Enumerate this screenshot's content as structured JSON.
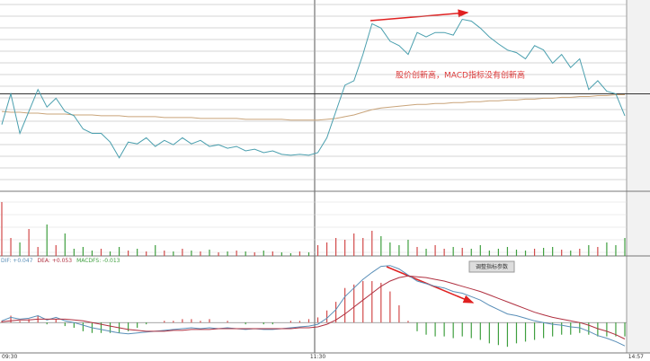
{
  "chart_data": [
    {
      "type": "line",
      "annotation": "股价创新高，MACD指标没有创新高",
      "categories": [
        "09:30",
        null,
        null,
        null,
        null,
        null,
        null,
        null,
        null,
        null,
        null,
        null,
        null,
        null,
        null,
        null,
        null,
        null,
        null,
        null,
        null,
        null,
        null,
        null,
        null,
        null,
        null,
        null,
        null,
        null,
        null,
        null,
        null,
        null,
        null,
        "11:30",
        null,
        null,
        null,
        null,
        null,
        null,
        null,
        null,
        null,
        null,
        null,
        null,
        null,
        null,
        null,
        null,
        null,
        null,
        null,
        null,
        null,
        null,
        null,
        null,
        null,
        null,
        null,
        null,
        null,
        null,
        null,
        null,
        null,
        "14:57"
      ],
      "ylim": [
        0,
        213
      ],
      "reference": 108,
      "series": [
        {
          "color": "#4a9fae",
          "values": [
            73,
            108,
            63,
            88,
            113,
            93,
            103,
            88,
            83,
            68,
            63,
            63,
            53,
            35,
            53,
            51,
            58,
            48,
            55,
            50,
            58,
            51,
            55,
            48,
            50,
            46,
            48,
            43,
            45,
            41,
            43,
            39,
            38,
            39,
            38,
            41,
            58,
            88,
            118,
            123,
            153,
            188,
            183,
            168,
            163,
            153,
            178,
            173,
            178,
            178,
            175,
            193,
            191,
            183,
            173,
            165,
            158,
            155,
            148,
            163,
            158,
            143,
            153,
            138,
            148,
            113,
            123,
            111,
            108,
            83
          ]
        },
        {
          "color": "#c9a47a",
          "values": [
            88,
            87,
            87,
            86,
            86,
            85,
            85,
            85,
            84,
            84,
            84,
            83,
            83,
            83,
            82,
            82,
            82,
            82,
            81,
            81,
            81,
            81,
            80,
            80,
            80,
            80,
            80,
            79,
            79,
            79,
            79,
            79,
            78,
            78,
            78,
            78,
            79,
            80,
            82,
            84,
            87,
            90,
            92,
            93,
            94,
            95,
            96,
            96,
            97,
            97,
            98,
            98,
            99,
            99,
            100,
            100,
            101,
            101,
            102,
            102,
            103,
            103,
            104,
            104,
            105,
            105,
            106,
            106,
            107,
            107
          ]
        }
      ]
    },
    {
      "type": "bar",
      "ylim": [
        0,
        72
      ],
      "up_color": "#d24a4a",
      "down_color": "#3f9f3f",
      "values": [
        60,
        20,
        15,
        30,
        10,
        35,
        12,
        25,
        8,
        10,
        6,
        8,
        5,
        10,
        6,
        8,
        5,
        12,
        6,
        5,
        8,
        6,
        5,
        7,
        4,
        5,
        6,
        5,
        4,
        6,
        5,
        4,
        3,
        5,
        4,
        12,
        15,
        20,
        18,
        25,
        20,
        28,
        22,
        15,
        12,
        18,
        10,
        8,
        12,
        8,
        10,
        9,
        8,
        12,
        6,
        8,
        10,
        7,
        6,
        8,
        9,
        10,
        7,
        6,
        8,
        12,
        10,
        15,
        12,
        20
      ]
    },
    {
      "type": "macd",
      "button": "调整指标参数",
      "ylim": [
        -33,
        75
      ],
      "series": [
        {
          "name": "DIF: +0.047",
          "color": "#5a8fb8",
          "values": [
            2,
            6,
            4,
            5,
            8,
            3,
            6,
            2,
            0,
            -3,
            -6,
            -8,
            -10,
            -12,
            -13,
            -12,
            -11,
            -10,
            -9,
            -8,
            -7,
            -6,
            -7,
            -6,
            -7,
            -6,
            -7,
            -8,
            -7,
            -8,
            -8,
            -7,
            -6,
            -5,
            -4,
            -2,
            5,
            15,
            30,
            40,
            50,
            58,
            65,
            66,
            62,
            55,
            48,
            45,
            42,
            40,
            36,
            34,
            30,
            26,
            20,
            15,
            10,
            8,
            5,
            2,
            0,
            -2,
            -3,
            -5,
            -6,
            -10,
            -15,
            -18,
            -22,
            -27
          ]
        },
        {
          "name": "DEA: +0.053",
          "color": "#b03040",
          "values": [
            1,
            2,
            3,
            3,
            4,
            4,
            4,
            4,
            3,
            2,
            0,
            -2,
            -4,
            -6,
            -8,
            -9,
            -10,
            -10,
            -10,
            -9,
            -9,
            -8,
            -8,
            -8,
            -7,
            -7,
            -7,
            -7,
            -7,
            -7,
            -7,
            -7,
            -7,
            -6,
            -6,
            -5,
            -2,
            3,
            10,
            18,
            26,
            34,
            42,
            48,
            52,
            54,
            53,
            52,
            50,
            48,
            45,
            42,
            39,
            36,
            32,
            28,
            24,
            20,
            16,
            12,
            9,
            6,
            4,
            2,
            0,
            -3,
            -7,
            -10,
            -14,
            -19
          ]
        },
        {
          "name": "MACDFS: -0.013",
          "color": "#3f9f3f",
          "up_color": "#d24a4a",
          "values": [
            2,
            8,
            2,
            4,
            8,
            -2,
            4,
            -4,
            -6,
            -10,
            -12,
            -12,
            -12,
            -12,
            -10,
            -6,
            -2,
            0,
            2,
            2,
            4,
            4,
            2,
            4,
            0,
            2,
            0,
            -2,
            0,
            -2,
            -2,
            0,
            2,
            2,
            4,
            6,
            14,
            24,
            40,
            44,
            48,
            48,
            46,
            36,
            20,
            2,
            -10,
            -14,
            -16,
            -16,
            -18,
            -16,
            -18,
            -20,
            -24,
            -26,
            -28,
            -24,
            -22,
            -20,
            -18,
            -16,
            -14,
            -14,
            -12,
            -14,
            -16,
            -16,
            -16,
            -16
          ]
        }
      ]
    }
  ]
}
